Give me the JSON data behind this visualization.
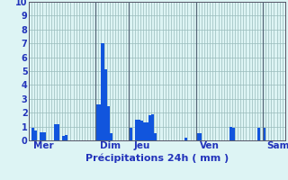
{
  "xlabel": "Précipitations 24h ( mm )",
  "background_color": "#ddf4f4",
  "bar_color": "#1155dd",
  "grid_color": "#99bbbb",
  "axis_line_color": "#555566",
  "text_color": "#2233bb",
  "ylim": [
    0,
    10
  ],
  "yticks": [
    0,
    1,
    2,
    3,
    4,
    5,
    6,
    7,
    8,
    9,
    10
  ],
  "day_labels": [
    "Mer",
    "Dim",
    "Jeu",
    "Ven",
    "Sam"
  ],
  "values": [
    0.0,
    0.9,
    0.7,
    0.0,
    0.6,
    0.6,
    0.0,
    0.0,
    0.0,
    1.2,
    1.2,
    0.0,
    0.3,
    0.4,
    0.0,
    0.0,
    0.0,
    0.0,
    0.0,
    0.0,
    0.0,
    0.0,
    0.0,
    0.0,
    2.6,
    2.6,
    7.0,
    5.1,
    2.5,
    0.5,
    0.0,
    0.0,
    0.0,
    0.0,
    0.0,
    0.0,
    0.9,
    0.0,
    1.5,
    1.5,
    1.4,
    1.3,
    1.3,
    1.8,
    1.9,
    0.5,
    0.0,
    0.0,
    0.0,
    0.0,
    0.0,
    0.0,
    0.0,
    0.0,
    0.0,
    0.0,
    0.2,
    0.0,
    0.0,
    0.0,
    0.5,
    0.5,
    0.0,
    0.0,
    0.0,
    0.0,
    0.0,
    0.0,
    0.0,
    0.0,
    0.0,
    0.0,
    1.0,
    0.9,
    0.0,
    0.0,
    0.0,
    0.0,
    0.0,
    0.0,
    0.0,
    0.0,
    0.9,
    0.0,
    0.9,
    0.0,
    0.0,
    0.0,
    0.0,
    0.0,
    0.0,
    0.0
  ],
  "vline_positions": [
    24,
    36,
    60,
    84
  ],
  "vline_color": "#556677",
  "day_tick_positions": [
    1,
    25,
    37,
    61,
    85
  ],
  "ytick_fontsize": 7,
  "xtick_fontsize": 7.5,
  "xlabel_fontsize": 8
}
